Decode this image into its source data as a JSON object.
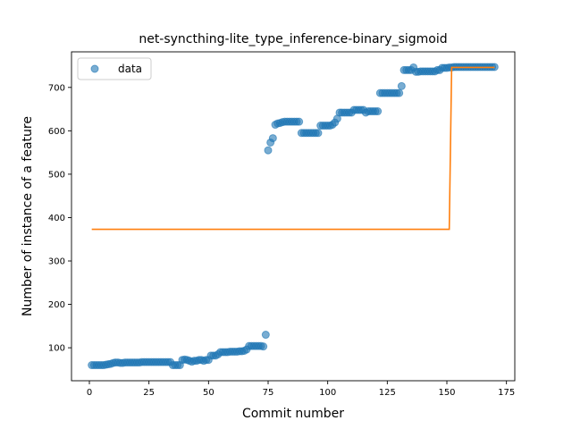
{
  "chart_data": {
    "type": "scatter",
    "title": "net-syncthing-lite_type_inference-binary_sigmoid",
    "xlabel": "Commit number",
    "ylabel": "Number of instance of a feature",
    "xlim": [
      -7.5,
      178.5
    ],
    "ylim": [
      24,
      782
    ],
    "xticks": [
      0,
      25,
      50,
      75,
      100,
      125,
      150,
      175
    ],
    "yticks": [
      100,
      200,
      300,
      400,
      500,
      600,
      700
    ],
    "grid": false,
    "legend": {
      "placement": "upper-left",
      "entries": [
        {
          "label": "data",
          "marker": "circle"
        }
      ]
    },
    "colors": {
      "data": "#1f77b4",
      "fit": "#ff7f0e"
    },
    "series": [
      {
        "name": "data",
        "kind": "scatter",
        "points": [
          [
            1,
            60
          ],
          [
            2,
            60
          ],
          [
            3,
            60
          ],
          [
            4,
            60
          ],
          [
            5,
            60
          ],
          [
            6,
            60
          ],
          [
            7,
            61
          ],
          [
            8,
            62
          ],
          [
            9,
            63
          ],
          [
            10,
            65
          ],
          [
            11,
            66
          ],
          [
            12,
            66
          ],
          [
            13,
            65
          ],
          [
            14,
            65
          ],
          [
            15,
            66
          ],
          [
            16,
            66
          ],
          [
            17,
            66
          ],
          [
            18,
            66
          ],
          [
            19,
            66
          ],
          [
            20,
            66
          ],
          [
            21,
            66
          ],
          [
            22,
            67
          ],
          [
            23,
            67
          ],
          [
            24,
            67
          ],
          [
            25,
            67
          ],
          [
            26,
            67
          ],
          [
            27,
            67
          ],
          [
            28,
            67
          ],
          [
            29,
            67
          ],
          [
            30,
            67
          ],
          [
            31,
            67
          ],
          [
            32,
            67
          ],
          [
            33,
            67
          ],
          [
            34,
            67
          ],
          [
            35,
            60
          ],
          [
            36,
            60
          ],
          [
            37,
            60
          ],
          [
            38,
            60
          ],
          [
            39,
            72
          ],
          [
            40,
            73
          ],
          [
            41,
            72
          ],
          [
            42,
            70
          ],
          [
            43,
            68
          ],
          [
            44,
            70
          ],
          [
            45,
            70
          ],
          [
            46,
            72
          ],
          [
            47,
            72
          ],
          [
            48,
            70
          ],
          [
            49,
            72
          ],
          [
            50,
            72
          ],
          [
            51,
            82
          ],
          [
            52,
            82
          ],
          [
            53,
            82
          ],
          [
            54,
            85
          ],
          [
            55,
            90
          ],
          [
            56,
            90
          ],
          [
            57,
            90
          ],
          [
            58,
            90
          ],
          [
            59,
            91
          ],
          [
            60,
            91
          ],
          [
            61,
            91
          ],
          [
            62,
            91
          ],
          [
            63,
            92
          ],
          [
            64,
            92
          ],
          [
            65,
            93
          ],
          [
            66,
            96
          ],
          [
            67,
            104
          ],
          [
            68,
            104
          ],
          [
            69,
            104
          ],
          [
            70,
            104
          ],
          [
            71,
            104
          ],
          [
            72,
            104
          ],
          [
            73,
            103
          ],
          [
            74,
            130
          ],
          [
            75,
            555
          ],
          [
            76,
            573
          ],
          [
            77,
            583
          ],
          [
            78,
            614
          ],
          [
            79,
            617
          ],
          [
            80,
            618
          ],
          [
            81,
            620
          ],
          [
            82,
            621
          ],
          [
            83,
            621
          ],
          [
            84,
            621
          ],
          [
            85,
            621
          ],
          [
            86,
            621
          ],
          [
            87,
            621
          ],
          [
            88,
            621
          ],
          [
            89,
            595
          ],
          [
            90,
            595
          ],
          [
            91,
            595
          ],
          [
            92,
            595
          ],
          [
            93,
            595
          ],
          [
            94,
            595
          ],
          [
            95,
            595
          ],
          [
            96,
            595
          ],
          [
            97,
            612
          ],
          [
            98,
            612
          ],
          [
            99,
            612
          ],
          [
            100,
            612
          ],
          [
            101,
            612
          ],
          [
            102,
            614
          ],
          [
            103,
            619
          ],
          [
            104,
            628
          ],
          [
            105,
            642
          ],
          [
            106,
            642
          ],
          [
            107,
            642
          ],
          [
            108,
            642
          ],
          [
            109,
            642
          ],
          [
            110,
            642
          ],
          [
            111,
            648
          ],
          [
            112,
            648
          ],
          [
            113,
            648
          ],
          [
            114,
            648
          ],
          [
            115,
            648
          ],
          [
            116,
            642
          ],
          [
            117,
            645
          ],
          [
            118,
            645
          ],
          [
            119,
            645
          ],
          [
            120,
            645
          ],
          [
            121,
            645
          ],
          [
            122,
            687
          ],
          [
            123,
            687
          ],
          [
            124,
            687
          ],
          [
            125,
            687
          ],
          [
            126,
            687
          ],
          [
            127,
            687
          ],
          [
            128,
            687
          ],
          [
            129,
            687
          ],
          [
            130,
            687
          ],
          [
            131,
            703
          ],
          [
            132,
            740
          ],
          [
            133,
            740
          ],
          [
            134,
            740
          ],
          [
            135,
            740
          ],
          [
            136,
            746
          ],
          [
            137,
            736
          ],
          [
            138,
            736
          ],
          [
            139,
            737
          ],
          [
            140,
            737
          ],
          [
            141,
            737
          ],
          [
            142,
            737
          ],
          [
            143,
            737
          ],
          [
            144,
            737
          ],
          [
            145,
            737
          ],
          [
            146,
            740
          ],
          [
            147,
            740
          ],
          [
            148,
            745
          ],
          [
            149,
            745
          ],
          [
            150,
            745
          ],
          [
            151,
            746
          ],
          [
            152,
            746
          ],
          [
            153,
            747
          ],
          [
            154,
            747
          ],
          [
            155,
            747
          ],
          [
            156,
            747
          ],
          [
            157,
            747
          ],
          [
            158,
            747
          ],
          [
            159,
            747
          ],
          [
            160,
            747
          ],
          [
            161,
            747
          ],
          [
            162,
            747
          ],
          [
            163,
            747
          ],
          [
            164,
            747
          ],
          [
            165,
            747
          ],
          [
            166,
            747
          ],
          [
            167,
            747
          ],
          [
            168,
            747
          ],
          [
            169,
            747
          ],
          [
            170,
            747
          ]
        ]
      },
      {
        "kind": "line",
        "points": [
          [
            1,
            373
          ],
          [
            151,
            373
          ],
          [
            152,
            746
          ],
          [
            170,
            746
          ]
        ]
      }
    ]
  }
}
